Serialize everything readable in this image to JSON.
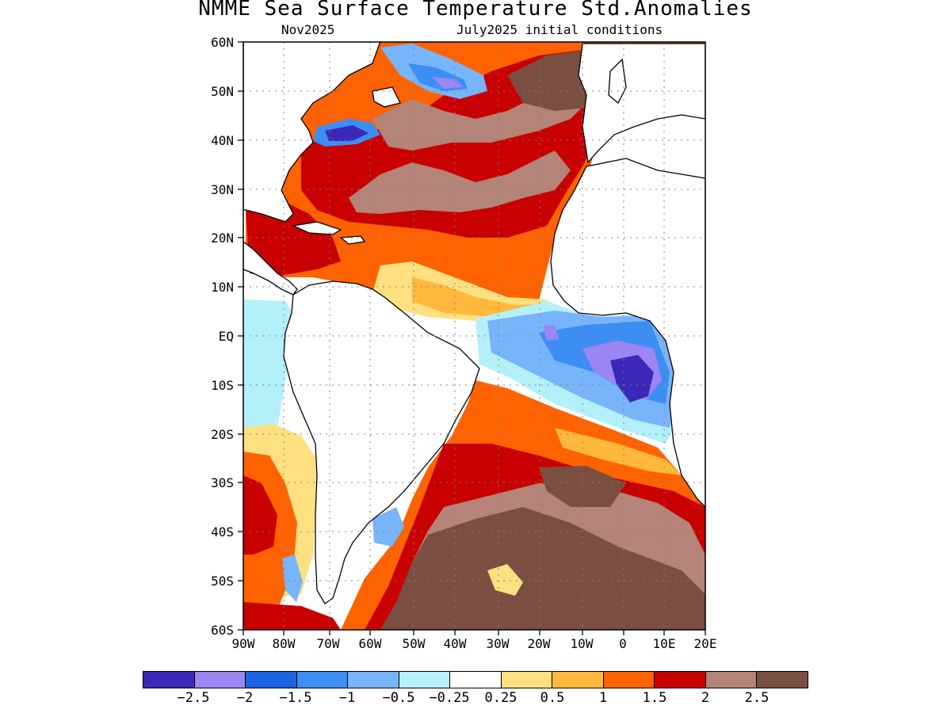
{
  "title": "NMME Sea Surface Temperature Std.Anomalies",
  "subtitle_left": "Nov2025",
  "subtitle_right": "July2025 initial conditions",
  "lat_labels": [
    "60N",
    "50N",
    "40N",
    "30N",
    "20N",
    "10N",
    "EQ",
    "10S",
    "20S",
    "30S",
    "40S",
    "50S",
    "60S"
  ],
  "lon_labels": [
    "90W",
    "80W",
    "70W",
    "60W",
    "50W",
    "40W",
    "30W",
    "20W",
    "10W",
    "0",
    "10E",
    "20E"
  ],
  "colorbar": {
    "colors": [
      "#3b28b8",
      "#9b86f4",
      "#1c64e4",
      "#3c8ef4",
      "#78b4fa",
      "#b4f0fa",
      "#ffffff",
      "#ffe080",
      "#ffb83c",
      "#ff6200",
      "#c80000",
      "#b48478",
      "#7a4e40"
    ],
    "labels": [
      "−2.5",
      "−2",
      "−1.5",
      "−1",
      "−0.5",
      "−0.25",
      "0.25",
      "0.5",
      "1",
      "1.5",
      "2",
      "2.5"
    ]
  },
  "land_color": "#ffffff"
}
